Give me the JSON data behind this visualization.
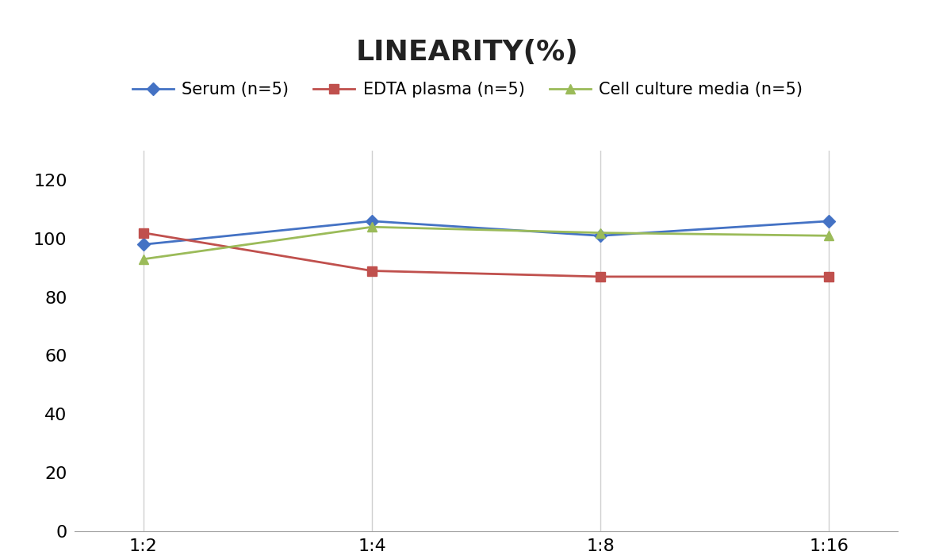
{
  "title": "LINEARITY(%)",
  "x_labels": [
    "1:2",
    "1:4",
    "1:8",
    "1:16"
  ],
  "x_positions": [
    0,
    1,
    2,
    3
  ],
  "series": [
    {
      "label": "Serum (n=5)",
      "values": [
        98,
        106,
        101,
        106
      ],
      "color": "#4472C4",
      "marker": "D",
      "marker_size": 8,
      "linewidth": 2.0
    },
    {
      "label": "EDTA plasma (n=5)",
      "values": [
        102,
        89,
        87,
        87
      ],
      "color": "#C0504D",
      "marker": "s",
      "marker_size": 8,
      "linewidth": 2.0
    },
    {
      "label": "Cell culture media (n=5)",
      "values": [
        93,
        104,
        102,
        101
      ],
      "color": "#9BBB59",
      "marker": "^",
      "marker_size": 8,
      "linewidth": 2.0
    }
  ],
  "ylim": [
    0,
    130
  ],
  "yticks": [
    0,
    20,
    40,
    60,
    80,
    100,
    120
  ],
  "background_color": "#ffffff",
  "grid_color": "#d0d0d0",
  "title_fontsize": 26,
  "tick_fontsize": 16,
  "legend_fontsize": 15
}
